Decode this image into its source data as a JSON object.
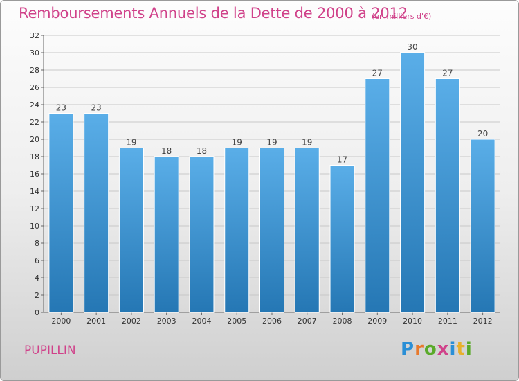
{
  "title": "Remboursements Annuels de la Dette de 2000 à 2012",
  "subtitle": "(en milliers d'€)",
  "commune": "PUPILLIN",
  "logo": {
    "text": "Proxiti",
    "letters": [
      {
        "ch": "P",
        "color": "#2a8fd6"
      },
      {
        "ch": "r",
        "color": "#e8792b"
      },
      {
        "ch": "o",
        "color": "#5aaa2a"
      },
      {
        "ch": "x",
        "color": "#d0428a"
      },
      {
        "ch": "i",
        "color": "#2a8fd6"
      },
      {
        "ch": "t",
        "color": "#e8b02b"
      },
      {
        "ch": "i",
        "color": "#5aaa2a"
      }
    ]
  },
  "colors": {
    "bar_light": "#5aaee8",
    "bar_dark": "#2577b4",
    "title": "#d0428a"
  },
  "chart_data": {
    "type": "bar",
    "title": "Remboursements Annuels de la Dette de 2000 à 2012",
    "subtitle": "(en milliers d'€)",
    "categories": [
      "2000",
      "2001",
      "2002",
      "2003",
      "2004",
      "2005",
      "2006",
      "2007",
      "2008",
      "2009",
      "2010",
      "2011",
      "2012"
    ],
    "values": [
      23,
      23,
      19,
      18,
      18,
      19,
      19,
      19,
      17,
      27,
      30,
      27,
      20
    ],
    "ylim": [
      0,
      32
    ],
    "yticks": [
      0,
      2,
      4,
      6,
      8,
      10,
      12,
      14,
      16,
      18,
      20,
      22,
      24,
      26,
      28,
      30,
      32
    ],
    "grid": true,
    "legend": "none"
  }
}
